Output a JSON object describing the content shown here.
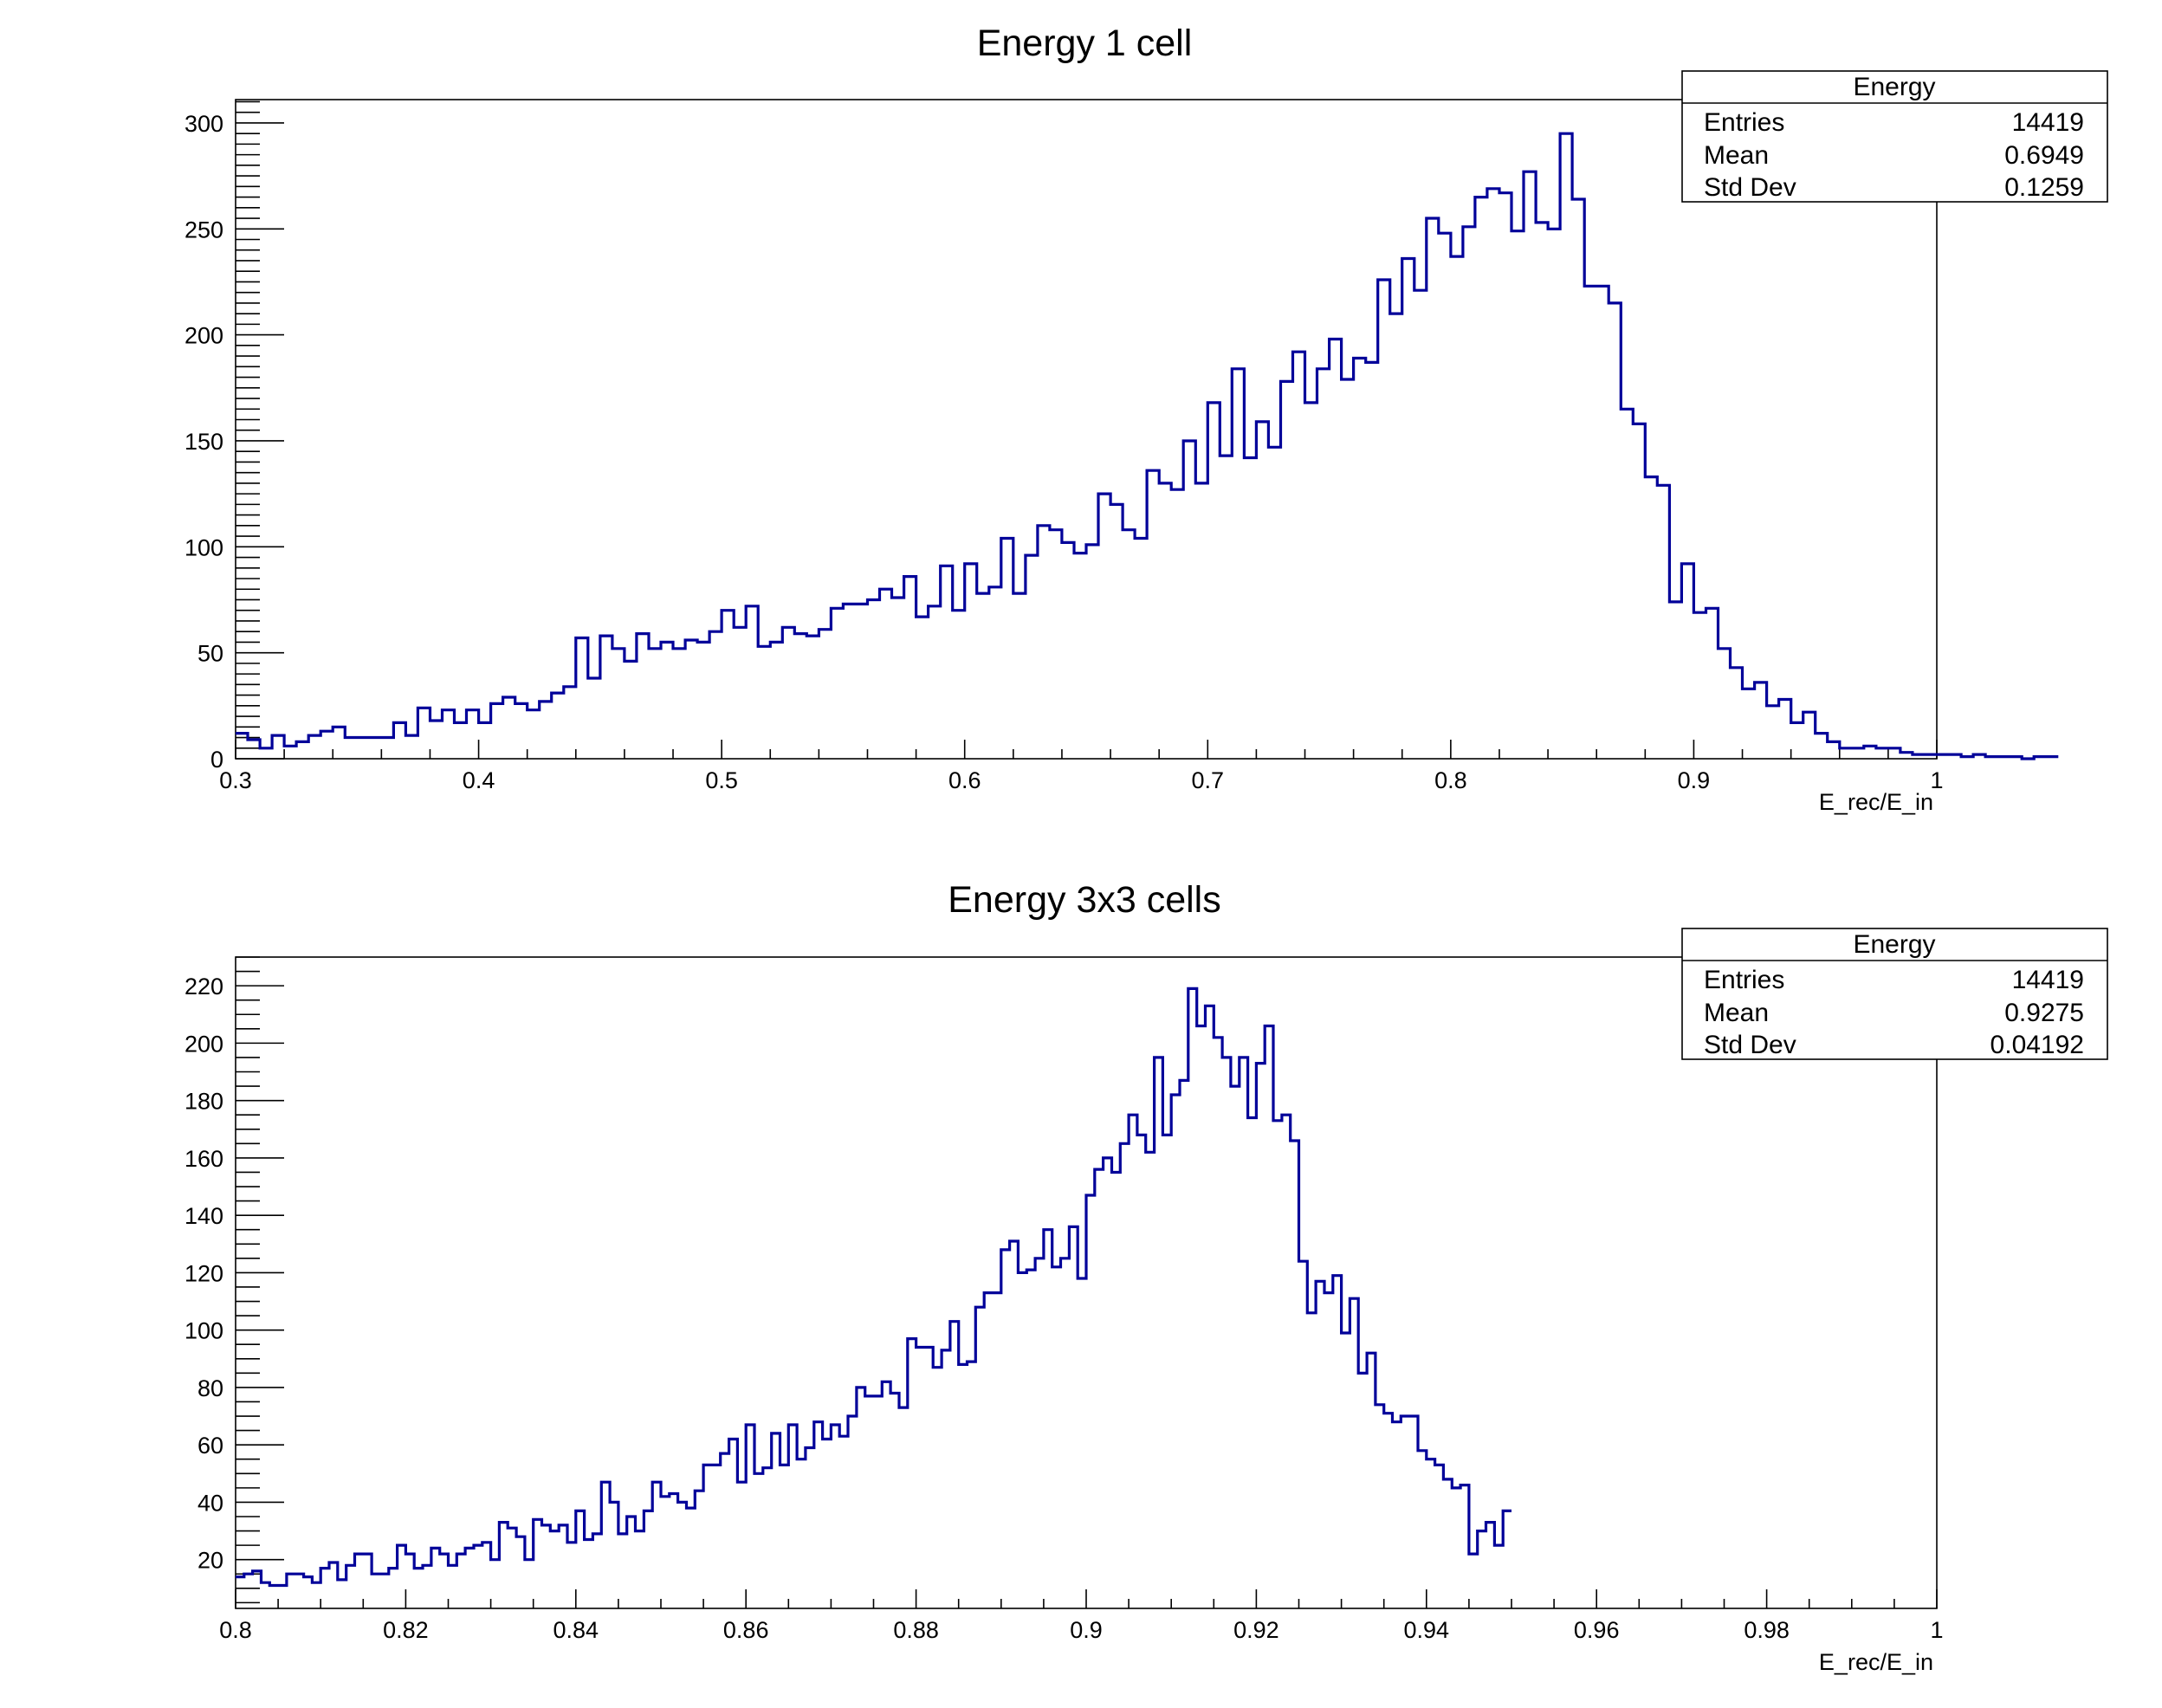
{
  "chart_data": [
    {
      "type": "histogram",
      "title": "Energy 1 cell",
      "xlabel": "E_rec/E_in",
      "ylabel": "",
      "xlim": [
        0.3,
        1.0
      ],
      "ylim": [
        0,
        311
      ],
      "line_color": "#000099",
      "xticks": [
        0.3,
        0.4,
        0.5,
        0.6,
        0.7,
        0.8,
        0.9,
        1.0
      ],
      "xtick_labels": [
        "0.3",
        "0.4",
        "0.5",
        "0.6",
        "0.7",
        "0.8",
        "0.9",
        "1"
      ],
      "yticks": [
        0,
        50,
        100,
        150,
        200,
        250,
        300
      ],
      "ytick_labels": [
        "0",
        "50",
        "100",
        "150",
        "200",
        "250",
        "300"
      ],
      "bin_edges_start": 0.3,
      "bin_width": 0.005,
      "values": [
        12,
        9,
        5,
        11,
        6,
        8,
        11,
        13,
        15,
        10,
        10,
        10,
        10,
        17,
        11,
        24,
        18,
        23,
        17,
        23,
        17,
        26,
        29,
        26,
        23,
        27,
        31,
        34,
        57,
        38,
        58,
        52,
        46,
        59,
        52,
        55,
        52,
        56,
        55,
        60,
        70,
        62,
        72,
        53,
        55,
        62,
        59,
        58,
        61,
        71,
        73,
        73,
        75,
        80,
        76,
        86,
        67,
        72,
        91,
        70,
        92,
        78,
        81,
        104,
        78,
        96,
        110,
        108,
        102,
        97,
        101,
        125,
        120,
        108,
        104,
        136,
        130,
        127,
        150,
        130,
        168,
        143,
        184,
        142,
        159,
        147,
        178,
        192,
        168,
        184,
        198,
        179,
        189,
        187,
        226,
        210,
        236,
        221,
        255,
        248,
        237,
        251,
        265,
        269,
        267,
        249,
        277,
        253,
        250,
        295,
        264,
        223,
        223,
        215,
        165,
        158,
        133,
        129,
        74,
        92,
        69,
        71,
        52,
        43,
        33,
        36,
        25,
        28,
        17,
        22,
        12,
        8,
        5,
        5,
        6,
        5,
        5,
        3,
        2,
        2,
        2,
        2,
        1,
        2,
        1,
        1,
        1,
        0,
        1,
        1
      ],
      "stats": {
        "header": "Energy",
        "rows": [
          {
            "label": "Entries",
            "value": "14419"
          },
          {
            "label": "Mean",
            "value": "0.6949"
          },
          {
            "label": "Std Dev",
            "value": "0.1259"
          }
        ]
      }
    },
    {
      "type": "histogram",
      "title": "Energy 3x3 cells",
      "xlabel": "E_rec/E_in",
      "ylabel": "",
      "xlim": [
        0.8,
        1.0
      ],
      "ylim": [
        3,
        230
      ],
      "line_color": "#000099",
      "xticks": [
        0.8,
        0.82,
        0.84,
        0.86,
        0.88,
        0.9,
        0.92,
        0.94,
        0.96,
        0.98,
        1.0
      ],
      "xtick_labels": [
        "0.8",
        "0.82",
        "0.84",
        "0.86",
        "0.88",
        "0.9",
        "0.92",
        "0.94",
        "0.96",
        "0.98",
        "1"
      ],
      "yticks": [
        20,
        40,
        60,
        80,
        100,
        120,
        140,
        160,
        180,
        200,
        220
      ],
      "ytick_labels": [
        "20",
        "40",
        "60",
        "80",
        "100",
        "120",
        "140",
        "160",
        "180",
        "200",
        "220"
      ],
      "bin_edges_start": 0.8,
      "bin_width": 0.001,
      "values": [
        14,
        15,
        16,
        12,
        11,
        11,
        15,
        15,
        14,
        12,
        17,
        19,
        13,
        18,
        22,
        22,
        15,
        15,
        17,
        25,
        22,
        17,
        18,
        24,
        22,
        18,
        22,
        24,
        25,
        26,
        20,
        33,
        31,
        28,
        20,
        34,
        32,
        30,
        32,
        26,
        37,
        27,
        29,
        47,
        40,
        29,
        35,
        30,
        37,
        47,
        42,
        43,
        40,
        38,
        44,
        53,
        53,
        57,
        62,
        47,
        67,
        50,
        52,
        64,
        53,
        67,
        55,
        59,
        68,
        62,
        67,
        63,
        70,
        80,
        77,
        77,
        82,
        78,
        73,
        97,
        94,
        94,
        87,
        93,
        103,
        88,
        89,
        108,
        113,
        113,
        128,
        131,
        120,
        121,
        125,
        135,
        122,
        125,
        136,
        118,
        147,
        156,
        160,
        155,
        165,
        175,
        168,
        162,
        195,
        168,
        182,
        187,
        219,
        206,
        213,
        202,
        195,
        185,
        195,
        174,
        193,
        206,
        173,
        175,
        166,
        124,
        106,
        117,
        113,
        119,
        99,
        111,
        85,
        92,
        74,
        71,
        68,
        70,
        70,
        58,
        55,
        53,
        48,
        45,
        46,
        22,
        30,
        33,
        25,
        37
      ],
      "stats": {
        "header": "Energy",
        "rows": [
          {
            "label": "Entries",
            "value": "14419"
          },
          {
            "label": "Mean",
            "value": "0.9275"
          },
          {
            "label": "Std Dev",
            "value": "0.04192"
          }
        ]
      }
    }
  ]
}
